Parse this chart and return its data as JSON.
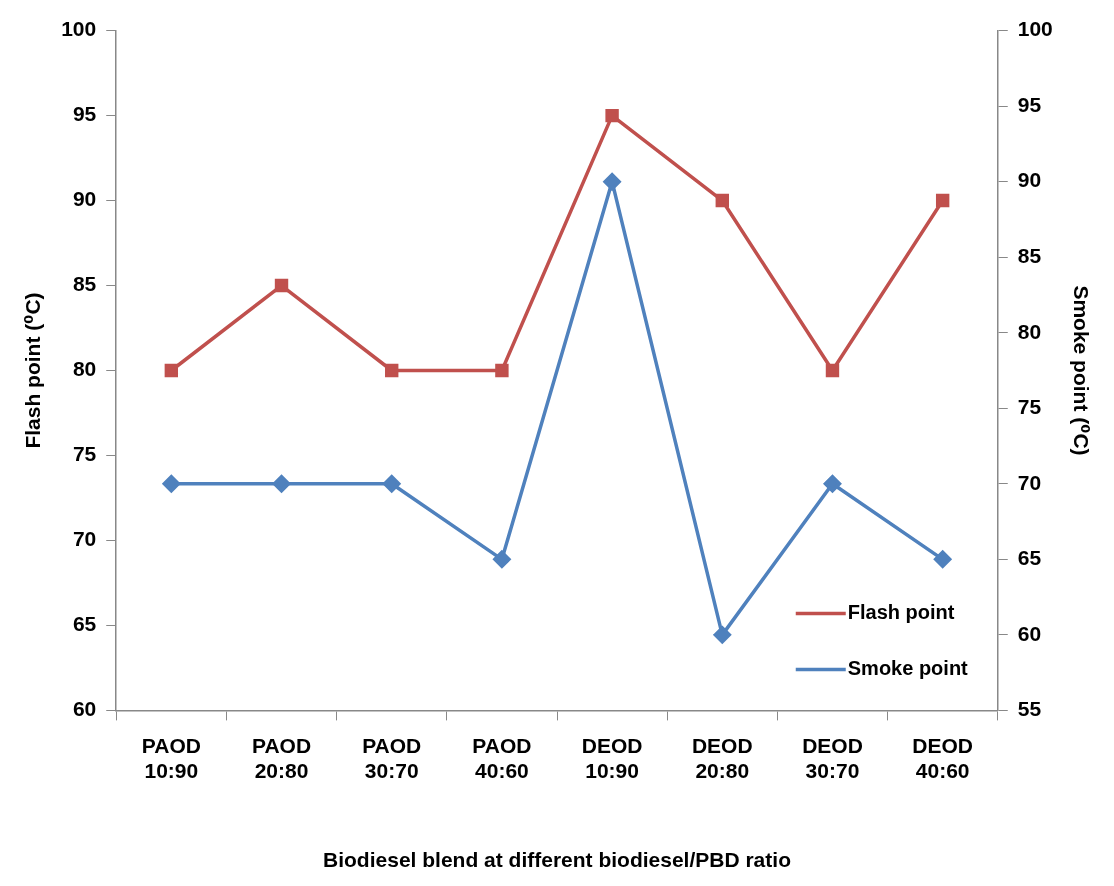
{
  "chart_data": {
    "type": "line",
    "xlabel": "Biodiesel blend at different biodiesel/PBD ratio",
    "ylabel": "Flash point (⁰C)",
    "y2label": "Smoke point (⁰C)",
    "categories": [
      "PAOD 10:90",
      "PAOD 20:80",
      "PAOD 30:70",
      "PAOD 40:60",
      "DEOD 10:90",
      "DEOD 20:80",
      "DEOD 30:70",
      "DEOD 40:60"
    ],
    "series": [
      {
        "name": "Flash point",
        "color": "#c0504d",
        "marker": "square",
        "values": [
          80,
          85,
          80,
          80,
          95,
          90,
          80,
          90
        ]
      },
      {
        "name": "Smoke point",
        "color": "#4f81bd",
        "marker": "diamond",
        "axis": "y2",
        "values": [
          70,
          70,
          70,
          65,
          90,
          60,
          70,
          65
        ]
      }
    ],
    "ylim": [
      60,
      100
    ],
    "yticks": [
      60,
      65,
      70,
      75,
      80,
      85,
      90,
      95,
      100
    ],
    "y2lim": [
      55,
      100
    ],
    "y2ticks": [
      55,
      60,
      65,
      70,
      75,
      80,
      85,
      90,
      95,
      100
    ],
    "grid": false,
    "legend": "bottom right"
  }
}
